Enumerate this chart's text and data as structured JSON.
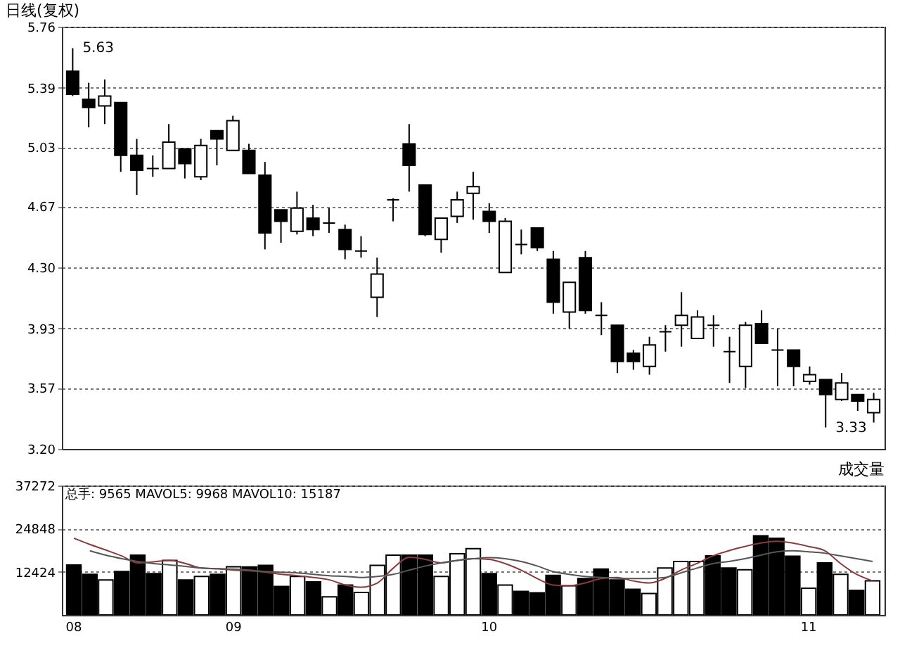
{
  "chart_data": [
    {
      "type": "candlestick",
      "title": "日线(复权)",
      "categories": [
        "08",
        null,
        null,
        null,
        null,
        null,
        null,
        null,
        null,
        null,
        "09",
        null,
        null,
        null,
        null,
        null,
        null,
        null,
        null,
        null,
        null,
        null,
        null,
        null,
        null,
        null,
        "10",
        null,
        null,
        null,
        null,
        null,
        null,
        null,
        null,
        null,
        null,
        null,
        null,
        null,
        null,
        null,
        null,
        null,
        null,
        null,
        "11",
        null,
        null,
        null,
        null
      ],
      "ohlc": [
        [
          5.49,
          5.63,
          5.34,
          5.35
        ],
        [
          5.32,
          5.42,
          5.15,
          5.27
        ],
        [
          5.28,
          5.44,
          5.17,
          5.34
        ],
        [
          5.3,
          5.3,
          4.88,
          4.98
        ],
        [
          4.98,
          5.08,
          4.74,
          4.89
        ],
        [
          4.9,
          4.98,
          4.85,
          4.9
        ],
        [
          4.9,
          5.17,
          4.9,
          5.06
        ],
        [
          5.02,
          5.02,
          4.84,
          4.93
        ],
        [
          4.85,
          5.08,
          4.83,
          5.04
        ],
        [
          5.13,
          5.13,
          4.92,
          5.08
        ],
        [
          5.01,
          5.22,
          5.01,
          5.19
        ],
        [
          5.01,
          5.05,
          4.87,
          4.87
        ],
        [
          4.86,
          4.94,
          4.41,
          4.51
        ],
        [
          4.65,
          4.65,
          4.45,
          4.58
        ],
        [
          4.52,
          4.76,
          4.5,
          4.66
        ],
        [
          4.6,
          4.68,
          4.49,
          4.53
        ],
        [
          4.57,
          4.66,
          4.51,
          4.57
        ],
        [
          4.53,
          4.56,
          4.35,
          4.41
        ],
        [
          4.4,
          4.49,
          4.36,
          4.4
        ],
        [
          4.12,
          4.36,
          4.0,
          4.26
        ],
        [
          4.71,
          4.72,
          4.58,
          4.71
        ],
        [
          5.05,
          5.17,
          4.76,
          4.92
        ],
        [
          4.8,
          4.8,
          4.49,
          4.5
        ],
        [
          4.47,
          4.6,
          4.39,
          4.6
        ],
        [
          4.61,
          4.76,
          4.57,
          4.71
        ],
        [
          4.75,
          4.88,
          4.59,
          4.79
        ],
        [
          4.64,
          4.69,
          4.51,
          4.58
        ],
        [
          4.27,
          4.6,
          4.27,
          4.58
        ],
        [
          4.44,
          4.53,
          4.38,
          4.44
        ],
        [
          4.54,
          4.54,
          4.4,
          4.42
        ],
        [
          4.35,
          4.4,
          4.02,
          4.09
        ],
        [
          4.03,
          4.21,
          3.93,
          4.21
        ],
        [
          4.36,
          4.4,
          4.02,
          4.04
        ],
        [
          4.01,
          4.09,
          3.89,
          4.01
        ],
        [
          3.95,
          3.95,
          3.66,
          3.73
        ],
        [
          3.78,
          3.8,
          3.68,
          3.73
        ],
        [
          3.7,
          3.88,
          3.65,
          3.83
        ],
        [
          3.91,
          3.95,
          3.79,
          3.91
        ],
        [
          3.95,
          4.15,
          3.82,
          4.01
        ],
        [
          3.87,
          4.04,
          3.87,
          4.0
        ],
        [
          3.95,
          4.01,
          3.82,
          3.95
        ],
        [
          3.79,
          3.88,
          3.6,
          3.79
        ],
        [
          3.7,
          3.97,
          3.57,
          3.95
        ],
        [
          3.96,
          4.04,
          3.84,
          3.84
        ],
        [
          3.8,
          3.93,
          3.58,
          3.8
        ],
        [
          3.8,
          3.8,
          3.58,
          3.7
        ],
        [
          3.61,
          3.7,
          3.59,
          3.65
        ],
        [
          3.62,
          3.62,
          3.33,
          3.53
        ],
        [
          3.5,
          3.66,
          3.49,
          3.6
        ],
        [
          3.53,
          3.53,
          3.43,
          3.49
        ],
        [
          3.42,
          3.54,
          3.36,
          3.5
        ]
      ],
      "colors": [
        "#000000",
        "#000000",
        "#ffffff",
        "#000000",
        "#000000",
        "#000000",
        "#ffffff",
        "#000000",
        "#ffffff",
        "#000000",
        "#ffffff",
        "#000000",
        "#000000",
        "#000000",
        "#ffffff",
        "#000000",
        "#000000",
        "#000000",
        "#000000",
        "#ffffff",
        "#000000",
        "#000000",
        "#000000",
        "#ffffff",
        "#ffffff",
        "#ffffff",
        "#000000",
        "#ffffff",
        "#000000",
        "#000000",
        "#000000",
        "#ffffff",
        "#000000",
        "#000000",
        "#000000",
        "#000000",
        "#ffffff",
        "#000000",
        "#ffffff",
        "#ffffff",
        "#000000",
        "#000000",
        "#ffffff",
        "#000000",
        "#000000",
        "#000000",
        "#ffffff",
        "#000000",
        "#ffffff",
        "#000000",
        "#ffffff"
      ],
      "ylim": [
        3.2,
        5.76
      ],
      "yticks": [
        {
          "value": 3.2,
          "label": "3.20"
        },
        3.57,
        3.93,
        {
          "value": 4.3,
          "label": "4.30"
        },
        4.67,
        5.03,
        5.39,
        5.76
      ],
      "grid": "y",
      "tick_labels": "y",
      "annotations": [
        "5.63",
        "3.33"
      ]
    },
    {
      "type": "bar",
      "title": "成交量",
      "categories": [
        "08",
        null,
        null,
        null,
        null,
        null,
        null,
        null,
        null,
        null,
        "09",
        null,
        null,
        null,
        null,
        null,
        null,
        null,
        null,
        null,
        null,
        null,
        null,
        null,
        null,
        null,
        "10",
        null,
        null,
        null,
        null,
        null,
        null,
        null,
        null,
        null,
        null,
        null,
        null,
        null,
        null,
        null,
        null,
        null,
        null,
        null,
        "11",
        null,
        null,
        null,
        null
      ],
      "series": [
        {
          "type": "bar",
          "values": [
            14400,
            11700,
            10100,
            12500,
            17200,
            11900,
            15700,
            10100,
            11100,
            11700,
            13900,
            13800,
            14300,
            8200,
            11100,
            9500,
            5200,
            8600,
            6500,
            14300,
            17200,
            17200,
            17200,
            11100,
            17600,
            19100,
            11900,
            8600,
            6800,
            6400,
            11400,
            8400,
            10500,
            13200,
            10100,
            7400,
            6200,
            13500,
            15400,
            15400,
            17000,
            13500,
            13000,
            22800,
            22100,
            16900,
            7700,
            15000,
            11700,
            7100,
            9800
          ],
          "colors": [
            "#000000",
            "#000000",
            "#ffffff",
            "#000000",
            "#000000",
            "#000000",
            "#ffffff",
            "#000000",
            "#ffffff",
            "#000000",
            "#ffffff",
            "#000000",
            "#000000",
            "#000000",
            "#ffffff",
            "#000000",
            "#ffffff",
            "#000000",
            "#ffffff",
            "#ffffff",
            "#ffffff",
            "#000000",
            "#000000",
            "#ffffff",
            "#ffffff",
            "#ffffff",
            "#000000",
            "#ffffff",
            "#000000",
            "#000000",
            "#000000",
            "#ffffff",
            "#000000",
            "#000000",
            "#000000",
            "#000000",
            "#ffffff",
            "#ffffff",
            "#ffffff",
            "#ffffff",
            "#000000",
            "#000000",
            "#ffffff",
            "#000000",
            "#000000",
            "#000000",
            "#ffffff",
            "#000000",
            "#ffffff",
            "#000000",
            "#ffffff"
          ]
        },
        {
          "type": "line",
          "color": "#8b3a3a",
          "values": [
            22100,
            20300,
            18700,
            17000,
            15000,
            15300,
            15700,
            14800,
            13500,
            13300,
            12900,
            12700,
            12300,
            11700,
            11300,
            10800,
            10100,
            8600,
            8000,
            9200,
            13500,
            16600,
            16000,
            15000,
            15700,
            16200,
            16000,
            14800,
            12900,
            10500,
            8600,
            8400,
            9200,
            10500,
            10800,
            9800,
            9200,
            10500,
            12900,
            14800,
            17000,
            18500,
            19700,
            20700,
            21200,
            20700,
            19700,
            18500,
            14800,
            11700,
            9800
          ]
        },
        {
          "type": "line",
          "color": "#555555",
          "values": [
            null,
            18500,
            17200,
            16200,
            15400,
            14800,
            14400,
            14000,
            13500,
            13300,
            13200,
            12900,
            12500,
            12300,
            12100,
            11700,
            11300,
            11100,
            10800,
            11100,
            11700,
            12900,
            14100,
            15000,
            15700,
            16200,
            16500,
            16200,
            15400,
            14100,
            12500,
            11700,
            11100,
            10800,
            10600,
            10500,
            10500,
            10800,
            12100,
            13500,
            14800,
            15400,
            16200,
            17200,
            18200,
            18500,
            18200,
            17800,
            17000,
            16200,
            15400
          ]
        }
      ],
      "ylim": [
        0,
        37272
      ],
      "yticks": [
        12424,
        24848,
        37272
      ],
      "grid": "y",
      "annotations": [
        "总手: 9565 MAVOL5: 9968 MAVOL10: 15187"
      ]
    }
  ]
}
